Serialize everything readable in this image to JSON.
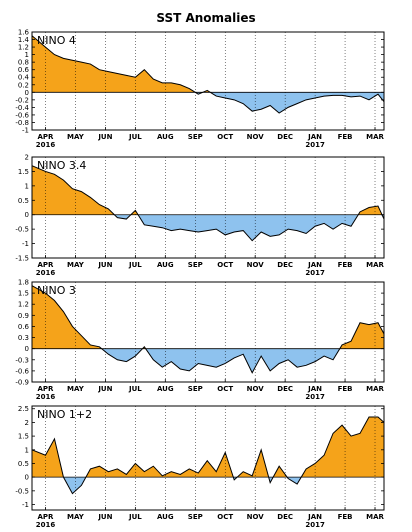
{
  "title": "SST Anomalies",
  "colors": {
    "positive": "#f5a31a",
    "negative": "#8ec2ee",
    "line": "#000000",
    "grid": "#000000"
  },
  "time_axis": {
    "months": [
      "APR",
      "MAY",
      "JUN",
      "JUL",
      "AUG",
      "SEP",
      "OCT",
      "NOV",
      "DEC",
      "JAN",
      "FEB",
      "MAR"
    ],
    "year_labels": [
      {
        "month_index": 0,
        "text": "2016"
      },
      {
        "month_index": 9,
        "text": "2017"
      }
    ]
  },
  "chart_data": [
    {
      "type": "area",
      "label": "NINO 4",
      "ylim": [
        -1,
        1.6
      ],
      "yticks": [
        "1.6",
        "1.4",
        "1.2",
        "1",
        "0.8",
        "0.6",
        "0.4",
        "0.2",
        "0",
        "-0.2",
        "-0.4",
        "-0.6",
        "-0.8",
        "-1"
      ],
      "ytick_values": [
        1.6,
        1.4,
        1.2,
        1,
        0.8,
        0.6,
        0.4,
        0.2,
        0,
        -0.2,
        -0.4,
        -0.6,
        -0.8,
        -1
      ],
      "x_months": [
        -0.45,
        0,
        0.3,
        0.6,
        0.9,
        1.2,
        1.5,
        1.8,
        2.1,
        2.4,
        2.7,
        3.0,
        3.3,
        3.6,
        3.9,
        4.2,
        4.5,
        4.8,
        5.1,
        5.4,
        5.7,
        6.0,
        6.3,
        6.6,
        6.9,
        7.2,
        7.5,
        7.8,
        8.1,
        8.4,
        8.7,
        9.0,
        9.3,
        9.6,
        9.9,
        10.2,
        10.5,
        10.8,
        11.1,
        11.3
      ],
      "values": [
        1.5,
        1.2,
        1.0,
        0.9,
        0.85,
        0.8,
        0.75,
        0.6,
        0.55,
        0.5,
        0.45,
        0.4,
        0.6,
        0.35,
        0.25,
        0.25,
        0.2,
        0.1,
        -0.05,
        0.05,
        -0.1,
        -0.15,
        -0.2,
        -0.3,
        -0.5,
        -0.45,
        -0.35,
        -0.55,
        -0.4,
        -0.3,
        -0.2,
        -0.15,
        -0.1,
        -0.08,
        -0.08,
        -0.12,
        -0.1,
        -0.2,
        -0.05,
        -0.25
      ]
    },
    {
      "type": "area",
      "label": "NINO 3.4",
      "ylim": [
        -1.5,
        2
      ],
      "yticks": [
        "2",
        "1.5",
        "1",
        "0.5",
        "0",
        "-0.5",
        "-1",
        "-1.5"
      ],
      "ytick_values": [
        2,
        1.5,
        1,
        0.5,
        0,
        -0.5,
        -1,
        -1.5
      ],
      "x_months": [
        -0.45,
        0,
        0.3,
        0.6,
        0.9,
        1.2,
        1.5,
        1.8,
        2.1,
        2.4,
        2.7,
        3.0,
        3.3,
        3.6,
        3.9,
        4.2,
        4.5,
        4.8,
        5.1,
        5.4,
        5.7,
        6.0,
        6.3,
        6.6,
        6.9,
        7.2,
        7.5,
        7.8,
        8.1,
        8.4,
        8.7,
        9.0,
        9.3,
        9.6,
        9.9,
        10.2,
        10.5,
        10.8,
        11.1,
        11.3
      ],
      "values": [
        1.7,
        1.5,
        1.4,
        1.2,
        0.9,
        0.8,
        0.6,
        0.35,
        0.2,
        -0.1,
        -0.15,
        0.15,
        -0.35,
        -0.4,
        -0.45,
        -0.55,
        -0.5,
        -0.55,
        -0.6,
        -0.55,
        -0.5,
        -0.7,
        -0.6,
        -0.55,
        -0.9,
        -0.6,
        -0.75,
        -0.7,
        -0.5,
        -0.55,
        -0.65,
        -0.4,
        -0.3,
        -0.5,
        -0.3,
        -0.4,
        0.1,
        0.25,
        0.3,
        -0.15
      ]
    },
    {
      "type": "area",
      "label": "NINO 3",
      "ylim": [
        -0.9,
        1.8
      ],
      "yticks": [
        "1.8",
        "1.5",
        "1.2",
        "0.9",
        "0.6",
        "0.3",
        "0",
        "-0.3",
        "-0.6",
        "-0.9"
      ],
      "ytick_values": [
        1.8,
        1.5,
        1.2,
        0.9,
        0.6,
        0.3,
        0,
        -0.3,
        -0.6,
        -0.9
      ],
      "x_months": [
        -0.45,
        0,
        0.3,
        0.6,
        0.9,
        1.2,
        1.5,
        1.8,
        2.1,
        2.4,
        2.7,
        3.0,
        3.3,
        3.6,
        3.9,
        4.2,
        4.5,
        4.8,
        5.1,
        5.4,
        5.7,
        6.0,
        6.3,
        6.6,
        6.9,
        7.2,
        7.5,
        7.8,
        8.1,
        8.4,
        8.7,
        9.0,
        9.3,
        9.6,
        9.9,
        10.2,
        10.5,
        10.8,
        11.1,
        11.3
      ],
      "values": [
        1.7,
        1.5,
        1.3,
        1.0,
        0.6,
        0.35,
        0.1,
        0.05,
        -0.15,
        -0.3,
        -0.35,
        -0.2,
        0.05,
        -0.3,
        -0.5,
        -0.35,
        -0.55,
        -0.6,
        -0.4,
        -0.45,
        -0.5,
        -0.4,
        -0.25,
        -0.15,
        -0.65,
        -0.2,
        -0.6,
        -0.4,
        -0.3,
        -0.5,
        -0.45,
        -0.35,
        -0.2,
        -0.3,
        0.1,
        0.2,
        0.7,
        0.65,
        0.7,
        0.4
      ]
    },
    {
      "type": "area",
      "label": "NINO 1+2",
      "ylim": [
        -1.2,
        2.6
      ],
      "yticks": [
        "2.5",
        "2",
        "1.5",
        "1",
        "0.5",
        "0",
        "-0.5",
        "-1"
      ],
      "ytick_values": [
        2.5,
        2,
        1.5,
        1,
        0.5,
        0,
        -0.5,
        -1
      ],
      "x_months": [
        -0.45,
        0,
        0.3,
        0.6,
        0.9,
        1.2,
        1.5,
        1.8,
        2.1,
        2.4,
        2.7,
        3.0,
        3.3,
        3.6,
        3.9,
        4.2,
        4.5,
        4.8,
        5.1,
        5.4,
        5.7,
        6.0,
        6.3,
        6.6,
        6.9,
        7.2,
        7.5,
        7.8,
        8.1,
        8.4,
        8.7,
        9.0,
        9.3,
        9.6,
        9.9,
        10.2,
        10.5,
        10.8,
        11.1,
        11.3
      ],
      "values": [
        1.0,
        0.8,
        1.4,
        0.0,
        -0.6,
        -0.3,
        0.3,
        0.4,
        0.2,
        0.3,
        0.1,
        0.5,
        0.2,
        0.4,
        0.05,
        0.2,
        0.1,
        0.3,
        0.15,
        0.6,
        0.2,
        0.9,
        -0.1,
        0.2,
        0.05,
        1.0,
        -0.2,
        0.4,
        -0.05,
        -0.25,
        0.3,
        0.5,
        0.8,
        1.6,
        1.9,
        1.5,
        1.6,
        2.2,
        2.2,
        2.0
      ]
    }
  ]
}
